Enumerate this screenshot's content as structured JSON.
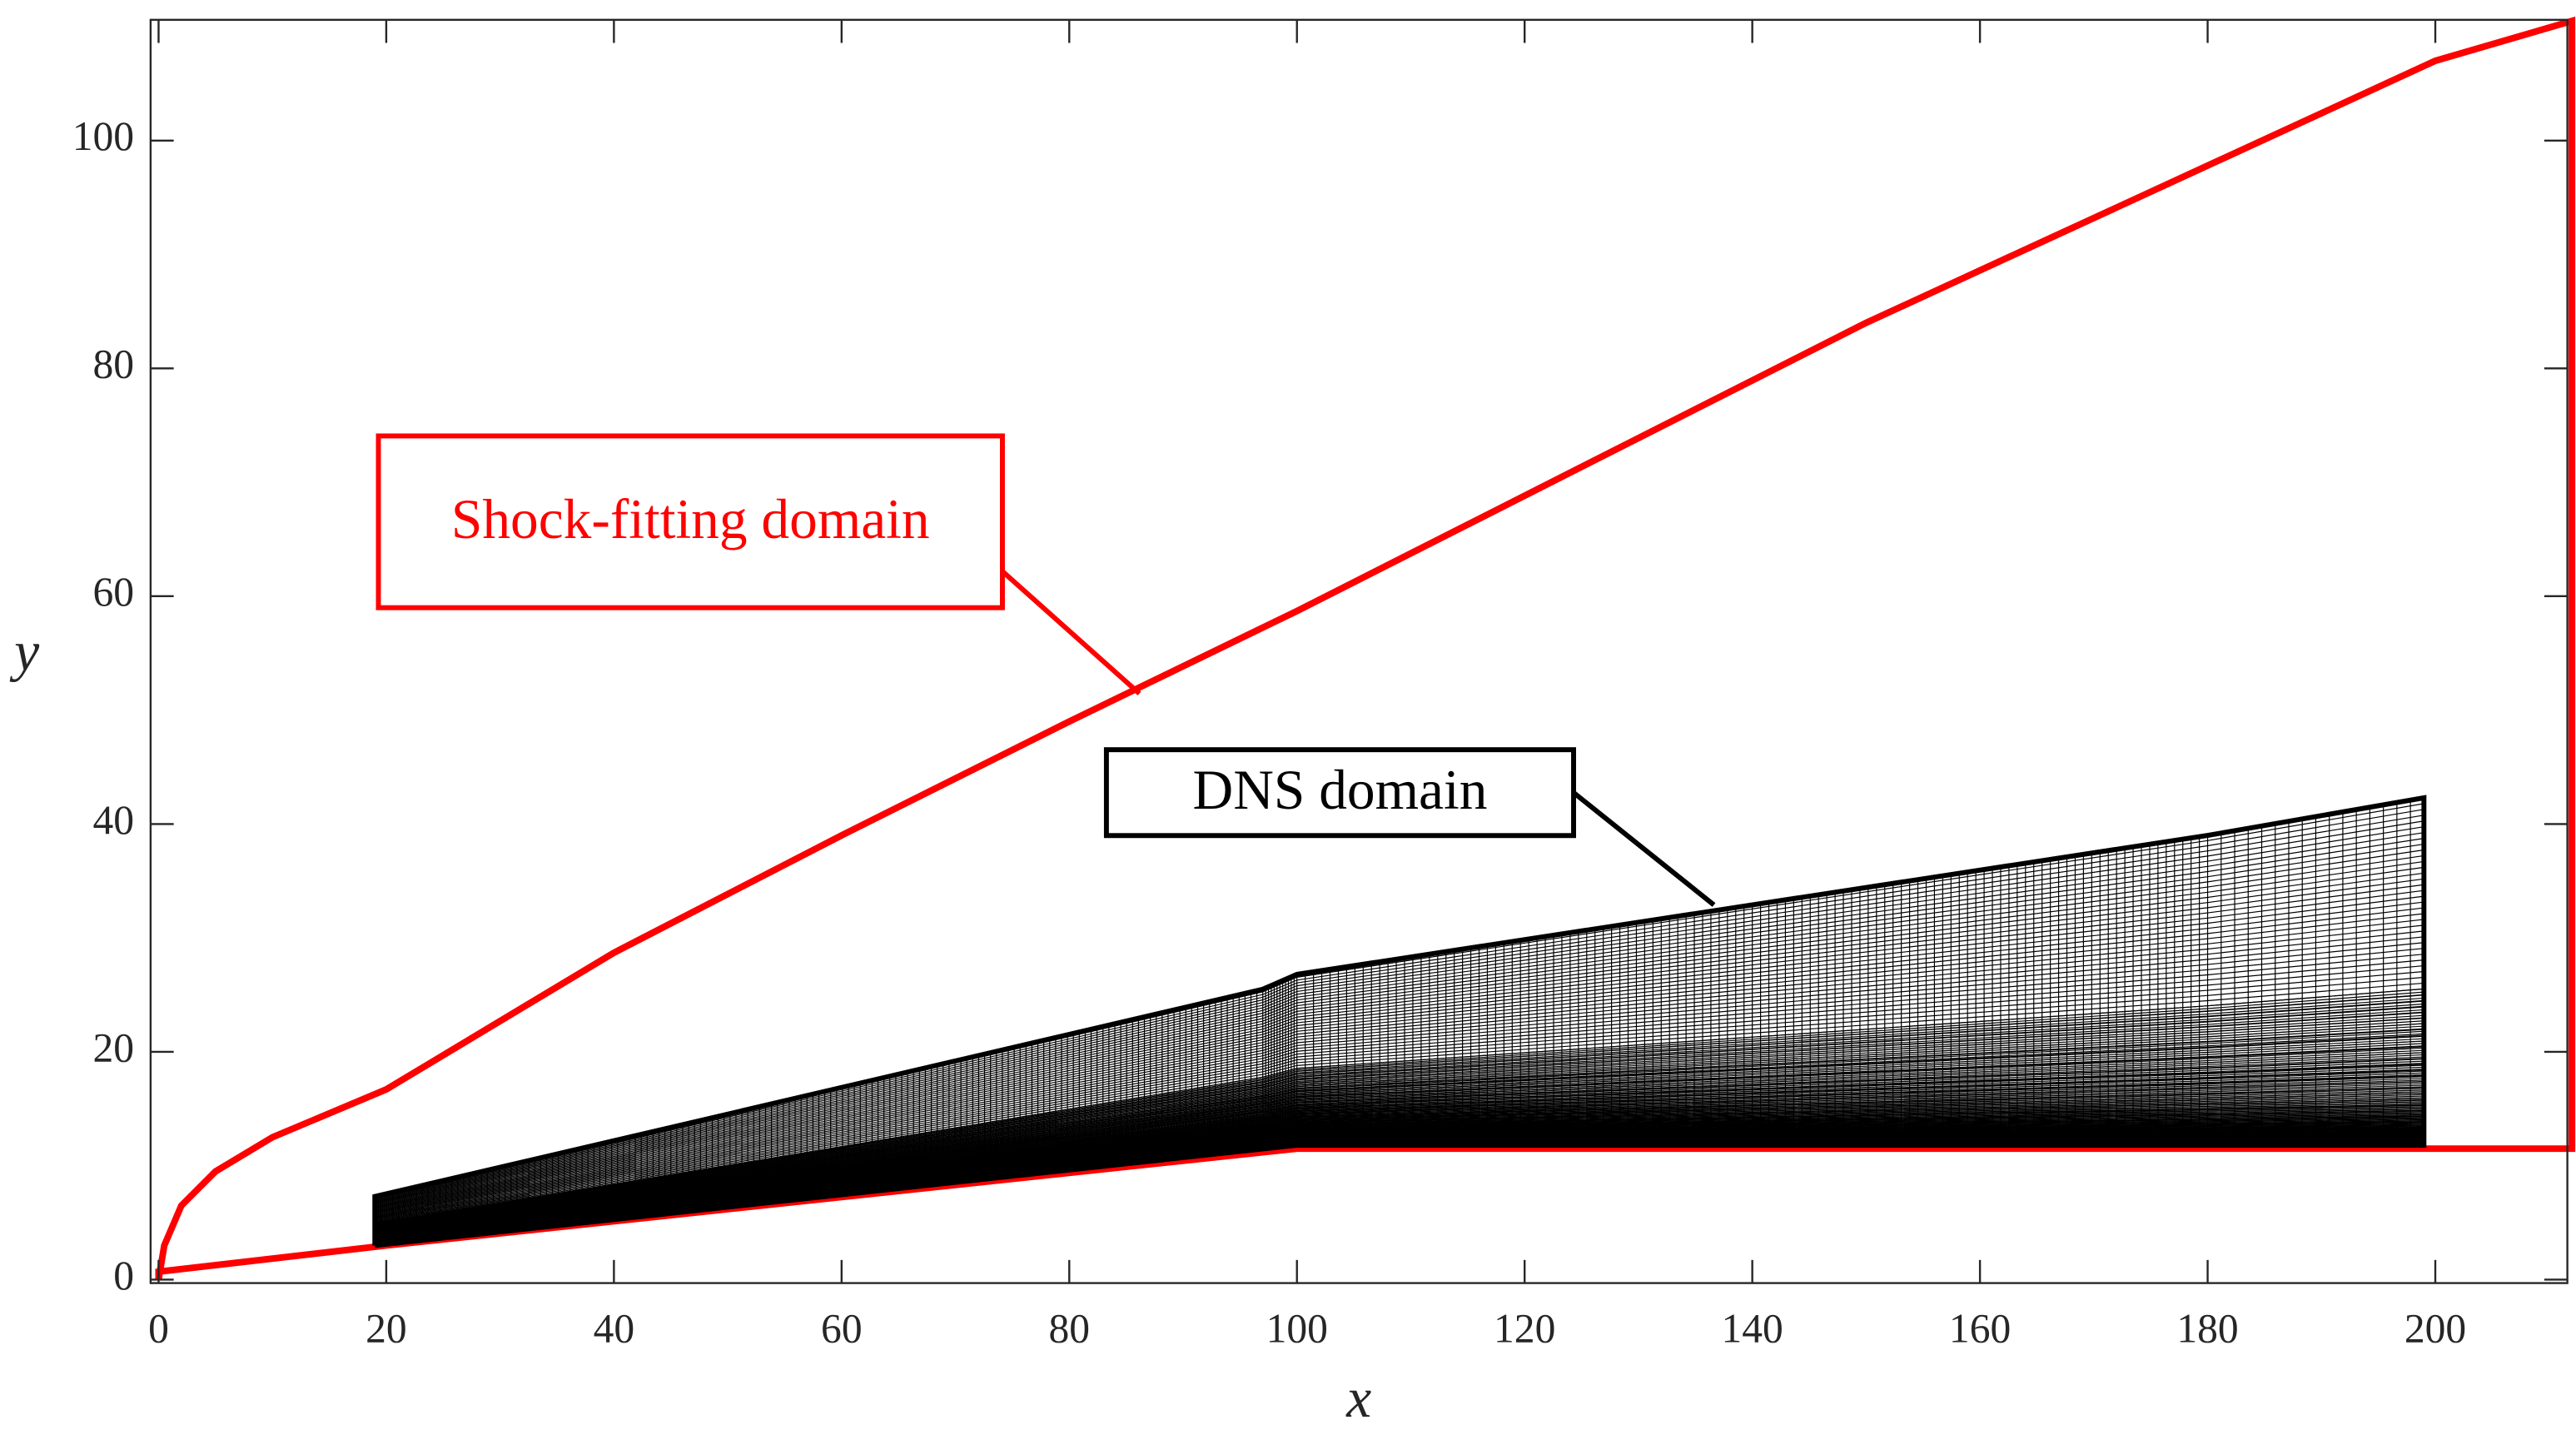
{
  "chart_data": {
    "type": "line",
    "x_label": "x",
    "y_label": "y",
    "xlim": [
      -0.7,
      211.6
    ],
    "ylim": [
      -0.3,
      110.6
    ],
    "xticks": [
      0,
      20,
      40,
      60,
      80,
      100,
      120,
      140,
      160,
      180,
      200
    ],
    "yticks": [
      0,
      20,
      40,
      60,
      80,
      100
    ],
    "series": [
      {
        "name": "Shock-fitting domain",
        "color": "#ff0000",
        "x": [
          0,
          0.5,
          2,
          5,
          10,
          20,
          40,
          60,
          80,
          100,
          150,
          200,
          212,
          212,
          100,
          20,
          0,
          0
        ],
        "values": [
          0,
          3,
          6.5,
          9.5,
          12.5,
          16.7,
          28.7,
          39,
          49,
          58.7,
          84,
          107,
          110.5,
          11.5,
          11.5,
          3,
          0.7,
          0
        ]
      },
      {
        "name": "DNS domain",
        "color": "#000000",
        "x": [
          19,
          19,
          97,
          100,
          180,
          199,
          199,
          100,
          19
        ],
        "values": [
          3,
          7.3,
          25.5,
          26.8,
          39,
          42.3,
          11.8,
          11.8,
          3
        ]
      }
    ]
  }
}
